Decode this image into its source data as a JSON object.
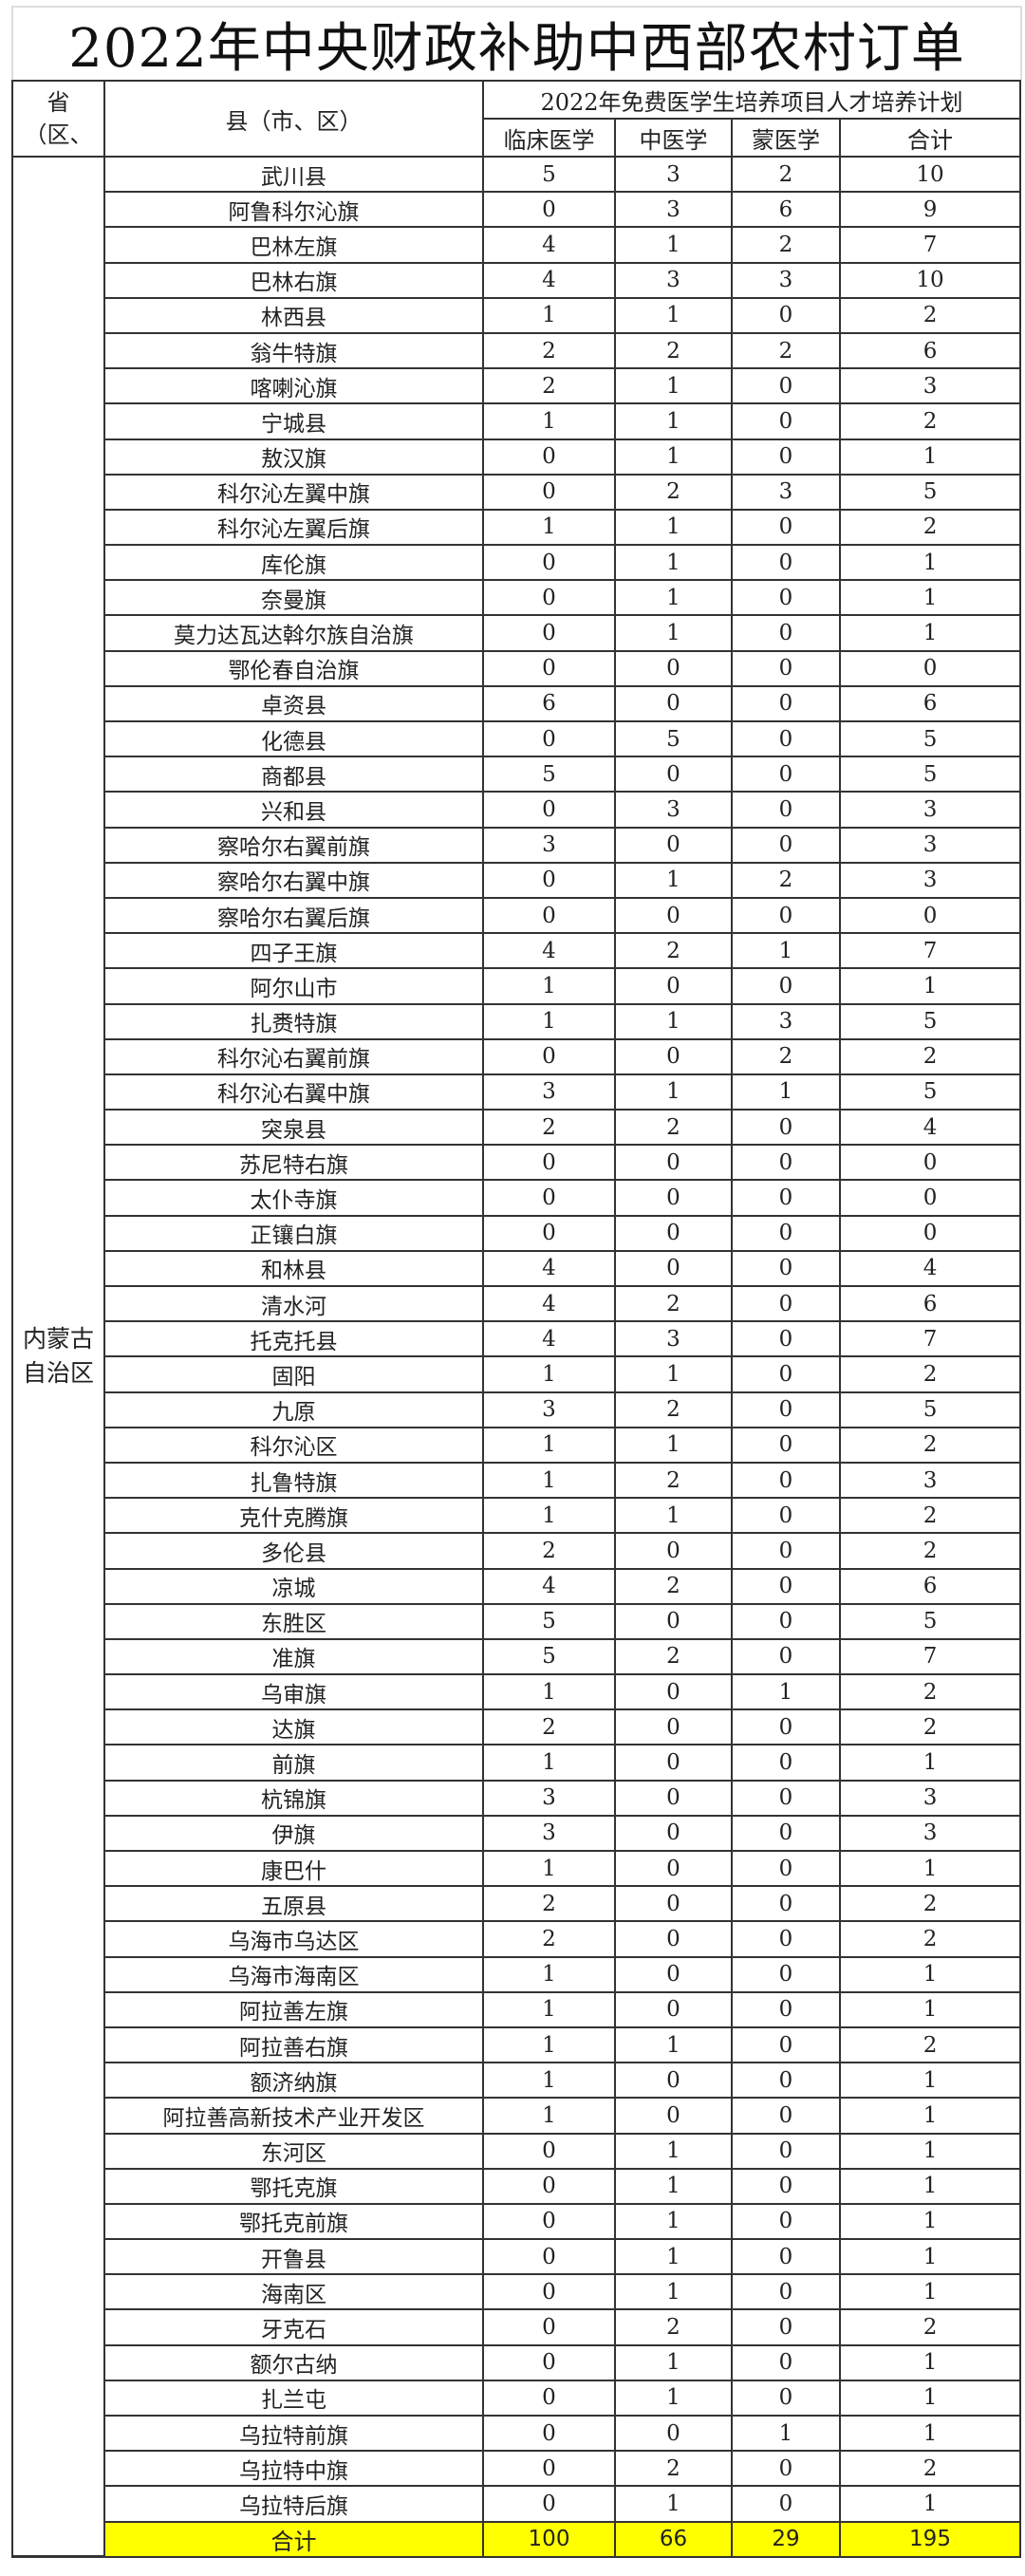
{
  "title": "2022年中央财政补助中西部农村订单",
  "header": {
    "province": "省（区、",
    "county": "县（市、区）",
    "plan": "2022年免费医学生培养项目人才培养计划",
    "columns": [
      "临床医学",
      "中医学",
      "蒙医学",
      "合计"
    ]
  },
  "province_name": "内蒙古自治区",
  "rows": [
    [
      "武川县",
      5,
      3,
      2,
      10
    ],
    [
      "阿鲁科尔沁旗",
      0,
      3,
      6,
      9
    ],
    [
      "巴林左旗",
      4,
      1,
      2,
      7
    ],
    [
      "巴林右旗",
      4,
      3,
      3,
      10
    ],
    [
      "林西县",
      1,
      1,
      0,
      2
    ],
    [
      "翁牛特旗",
      2,
      2,
      2,
      6
    ],
    [
      "喀喇沁旗",
      2,
      1,
      0,
      3
    ],
    [
      "宁城县",
      1,
      1,
      0,
      2
    ],
    [
      "敖汉旗",
      0,
      1,
      0,
      1
    ],
    [
      "科尔沁左翼中旗",
      0,
      2,
      3,
      5
    ],
    [
      "科尔沁左翼后旗",
      1,
      1,
      0,
      2
    ],
    [
      "库伦旗",
      0,
      1,
      0,
      1
    ],
    [
      "奈曼旗",
      0,
      1,
      0,
      1
    ],
    [
      "莫力达瓦达斡尔族自治旗",
      0,
      1,
      0,
      1
    ],
    [
      "鄂伦春自治旗",
      0,
      0,
      0,
      0
    ],
    [
      "卓资县",
      6,
      0,
      0,
      6
    ],
    [
      "化德县",
      0,
      5,
      0,
      5
    ],
    [
      "商都县",
      5,
      0,
      0,
      5
    ],
    [
      "兴和县",
      0,
      3,
      0,
      3
    ],
    [
      "察哈尔右翼前旗",
      3,
      0,
      0,
      3
    ],
    [
      "察哈尔右翼中旗",
      0,
      1,
      2,
      3
    ],
    [
      "察哈尔右翼后旗",
      0,
      0,
      0,
      0
    ],
    [
      "四子王旗",
      4,
      2,
      1,
      7
    ],
    [
      "阿尔山市",
      1,
      0,
      0,
      1
    ],
    [
      "扎赉特旗",
      1,
      1,
      3,
      5
    ],
    [
      "科尔沁右翼前旗",
      0,
      0,
      2,
      2
    ],
    [
      "科尔沁右翼中旗",
      3,
      1,
      1,
      5
    ],
    [
      "突泉县",
      2,
      2,
      0,
      4
    ],
    [
      "苏尼特右旗",
      0,
      0,
      0,
      0
    ],
    [
      "太仆寺旗",
      0,
      0,
      0,
      0
    ],
    [
      "正镶白旗",
      0,
      0,
      0,
      0
    ],
    [
      "和林县",
      4,
      0,
      0,
      4
    ],
    [
      "清水河",
      4,
      2,
      0,
      6
    ],
    [
      "托克托县",
      4,
      3,
      0,
      7
    ],
    [
      "固阳",
      1,
      1,
      0,
      2
    ],
    [
      "九原",
      3,
      2,
      0,
      5
    ],
    [
      "科尔沁区",
      1,
      1,
      0,
      2
    ],
    [
      "扎鲁特旗",
      1,
      2,
      0,
      3
    ],
    [
      "克什克腾旗",
      1,
      1,
      0,
      2
    ],
    [
      "多伦县",
      2,
      0,
      0,
      2
    ],
    [
      "凉城",
      4,
      2,
      0,
      6
    ],
    [
      "东胜区",
      5,
      0,
      0,
      5
    ],
    [
      "准旗",
      5,
      2,
      0,
      7
    ],
    [
      "乌审旗",
      1,
      0,
      1,
      2
    ],
    [
      "达旗",
      2,
      0,
      0,
      2
    ],
    [
      "前旗",
      1,
      0,
      0,
      1
    ],
    [
      "杭锦旗",
      3,
      0,
      0,
      3
    ],
    [
      "伊旗",
      3,
      0,
      0,
      3
    ],
    [
      "康巴什",
      1,
      0,
      0,
      1
    ],
    [
      "五原县",
      2,
      0,
      0,
      2
    ],
    [
      "乌海市乌达区",
      2,
      0,
      0,
      2
    ],
    [
      "乌海市海南区",
      1,
      0,
      0,
      1
    ],
    [
      "阿拉善左旗",
      1,
      0,
      0,
      1
    ],
    [
      "阿拉善右旗",
      1,
      1,
      0,
      2
    ],
    [
      "额济纳旗",
      1,
      0,
      0,
      1
    ],
    [
      "阿拉善高新技术产业开发区",
      1,
      0,
      0,
      1
    ],
    [
      "东河区",
      0,
      1,
      0,
      1
    ],
    [
      "鄂托克旗",
      0,
      1,
      0,
      1
    ],
    [
      "鄂托克前旗",
      0,
      1,
      0,
      1
    ],
    [
      "开鲁县",
      0,
      1,
      0,
      1
    ],
    [
      "海南区",
      0,
      1,
      0,
      1
    ],
    [
      "牙克石",
      0,
      2,
      0,
      2
    ],
    [
      "额尔古纳",
      0,
      1,
      0,
      1
    ],
    [
      "扎兰屯",
      0,
      1,
      0,
      1
    ],
    [
      "乌拉特前旗",
      0,
      0,
      1,
      1
    ],
    [
      "乌拉特中旗",
      0,
      2,
      0,
      2
    ],
    [
      "乌拉特后旗",
      0,
      1,
      0,
      1
    ]
  ],
  "total": [
    "合计",
    100,
    66,
    29,
    195
  ],
  "colors": {
    "total_row_bg": "#ffff00",
    "border": "#333333"
  }
}
